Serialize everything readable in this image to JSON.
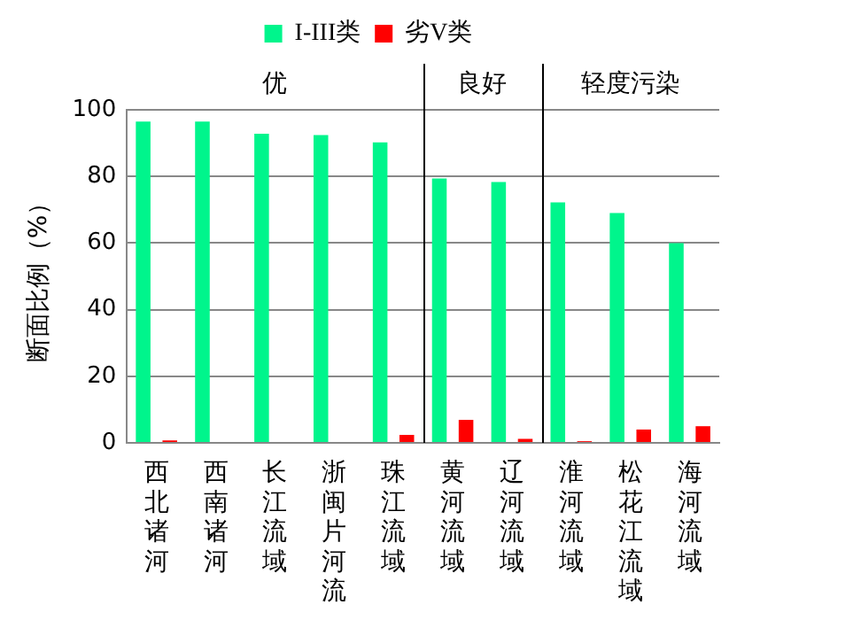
{
  "chart_data": {
    "type": "bar",
    "ylabel": "断面比例（%）",
    "categories": [
      "西北诸河",
      "西南诸河",
      "长江流域",
      "浙闽片河流",
      "珠江流域",
      "黄河流域",
      "辽河流域",
      "淮河流域",
      "松花江流域",
      "海河流域"
    ],
    "series": [
      {
        "name": "I-III类",
        "color": "#00f58c",
        "values": [
          96.5,
          96.5,
          92.8,
          92.4,
          90.2,
          79.4,
          78.3,
          72.2,
          69,
          60
        ]
      },
      {
        "name": "劣V类",
        "color": "#ff0000",
        "values": [
          0.7,
          0,
          0,
          0,
          2.4,
          6.9,
          1.2,
          0.5,
          4,
          5
        ]
      }
    ],
    "ylim": [
      0,
      100
    ],
    "yticks": [
      0,
      20,
      40,
      60,
      80,
      100
    ],
    "grid": "y",
    "legend": "top",
    "annotations": [
      "优",
      "良好",
      "轻度污染"
    ]
  }
}
